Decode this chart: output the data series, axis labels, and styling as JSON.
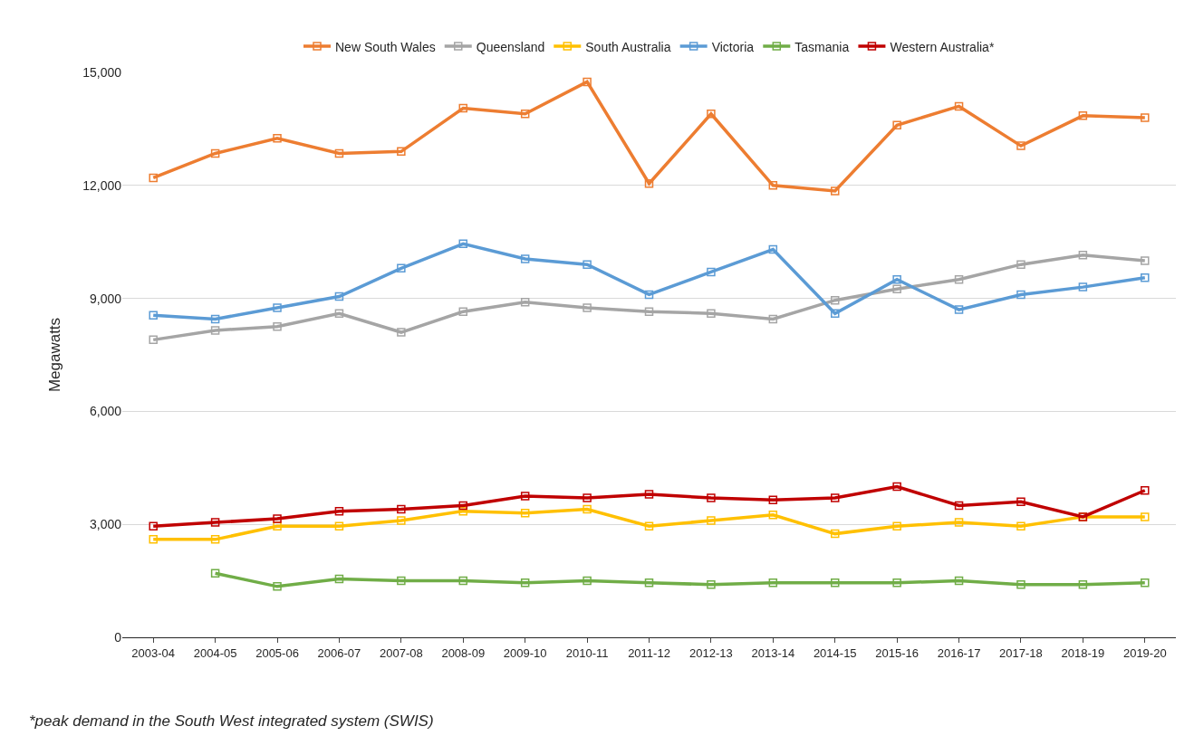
{
  "chart_data": {
    "type": "line",
    "ylabel": "Megawatts",
    "categories": [
      "2003-04",
      "2004-05",
      "2005-06",
      "2006-07",
      "2007-08",
      "2008-09",
      "2009-10",
      "2010-11",
      "2011-12",
      "2012-13",
      "2013-14",
      "2014-15",
      "2015-16",
      "2016-17",
      "2017-18",
      "2018-19",
      "2019-20"
    ],
    "series": [
      {
        "name": "New South Wales",
        "color": "#ed7d31",
        "values": [
          12200,
          12850,
          13250,
          12850,
          12900,
          14050,
          13900,
          14750,
          12050,
          13900,
          12000,
          11850,
          13600,
          14100,
          13050,
          13850,
          13800
        ]
      },
      {
        "name": "Queensland",
        "color": "#a5a5a5",
        "values": [
          7900,
          8150,
          8250,
          8600,
          8100,
          8650,
          8900,
          8750,
          8650,
          8600,
          8450,
          8950,
          9250,
          9500,
          9900,
          10150,
          10000
        ]
      },
      {
        "name": "South Australia",
        "color": "#ffc000",
        "values": [
          2600,
          2600,
          2950,
          2950,
          3100,
          3350,
          3300,
          3400,
          2950,
          3100,
          3250,
          2750,
          2950,
          3050,
          2950,
          3200,
          3200
        ]
      },
      {
        "name": "Victoria",
        "color": "#5b9bd5",
        "values": [
          8550,
          8450,
          8750,
          9050,
          9800,
          10450,
          10050,
          9900,
          9100,
          9700,
          10300,
          8600,
          9500,
          8700,
          9100,
          9300,
          9550
        ]
      },
      {
        "name": "Tasmania",
        "color": "#70ad47",
        "values": [
          null,
          1700,
          1350,
          1550,
          1500,
          1500,
          1450,
          1500,
          1450,
          1400,
          1450,
          1450,
          1450,
          1500,
          1400,
          1400,
          1450
        ]
      },
      {
        "name": "Western Australia*",
        "color": "#c00000",
        "values": [
          2950,
          3050,
          3150,
          3350,
          3400,
          3500,
          3750,
          3700,
          3800,
          3700,
          3650,
          3700,
          4000,
          3500,
          3600,
          3200,
          3900
        ]
      }
    ],
    "ylim": [
      0,
      15000
    ],
    "yticks": [
      {
        "value": 0,
        "label": "0"
      },
      {
        "value": 3000,
        "label": "3,000"
      },
      {
        "value": 6000,
        "label": "6,000"
      },
      {
        "value": 9000,
        "label": "9,000"
      },
      {
        "value": 12000,
        "label": "12,000"
      },
      {
        "value": 15000,
        "label": "15,000"
      }
    ],
    "grid": "y",
    "legend": "top",
    "marker": "square",
    "line_style": "solid",
    "annotations": [
      "*peak demand in the South West integrated system (SWIS)"
    ]
  }
}
